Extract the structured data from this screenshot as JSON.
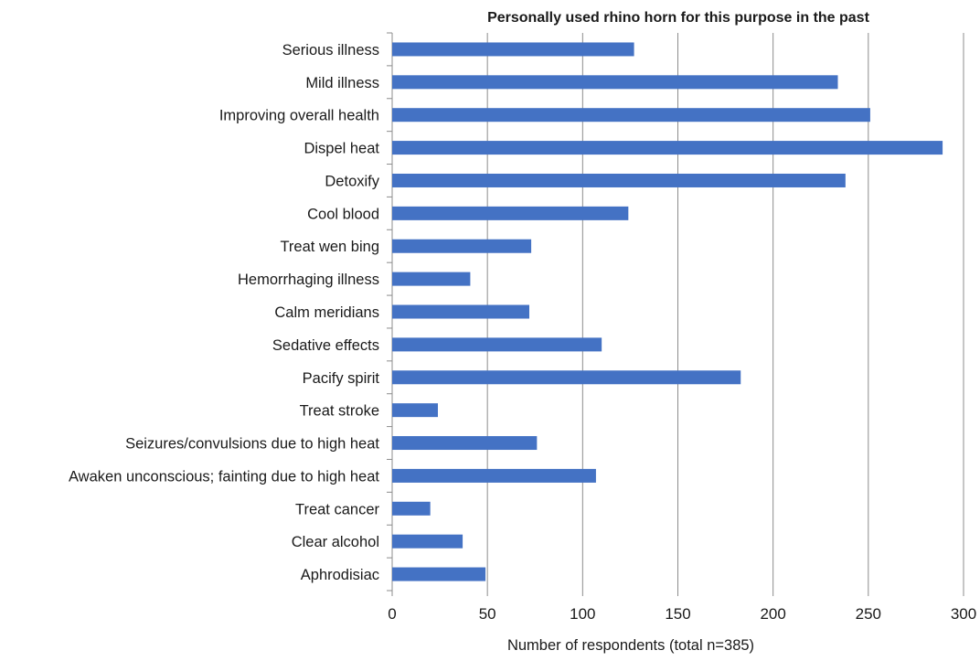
{
  "chart_data": {
    "type": "bar",
    "orientation": "horizontal",
    "title": "Personally used rhino horn for this purpose in the past",
    "xlabel": "Number of respondents (total n=385)",
    "ylabel": "",
    "xlim": [
      0,
      300
    ],
    "xticks": [
      0,
      50,
      100,
      150,
      200,
      250,
      300
    ],
    "grid": "vertical",
    "legend": "none",
    "bar_color": "#4472C4",
    "categories": [
      "Serious illness",
      "Mild illness",
      "Improving overall health",
      "Dispel heat",
      "Detoxify",
      "Cool blood",
      "Treat wen bing",
      "Hemorrhaging illness",
      "Calm meridians",
      "Sedative effects",
      "Pacify spirit",
      "Treat stroke",
      "Seizures/convulsions due to high heat",
      "Awaken unconscious; fainting due to high heat",
      "Treat cancer",
      "Clear alcohol",
      "Aphrodisiac"
    ],
    "values": [
      127,
      234,
      251,
      289,
      238,
      124,
      73,
      41,
      72,
      110,
      183,
      24,
      76,
      107,
      20,
      37,
      49
    ]
  }
}
